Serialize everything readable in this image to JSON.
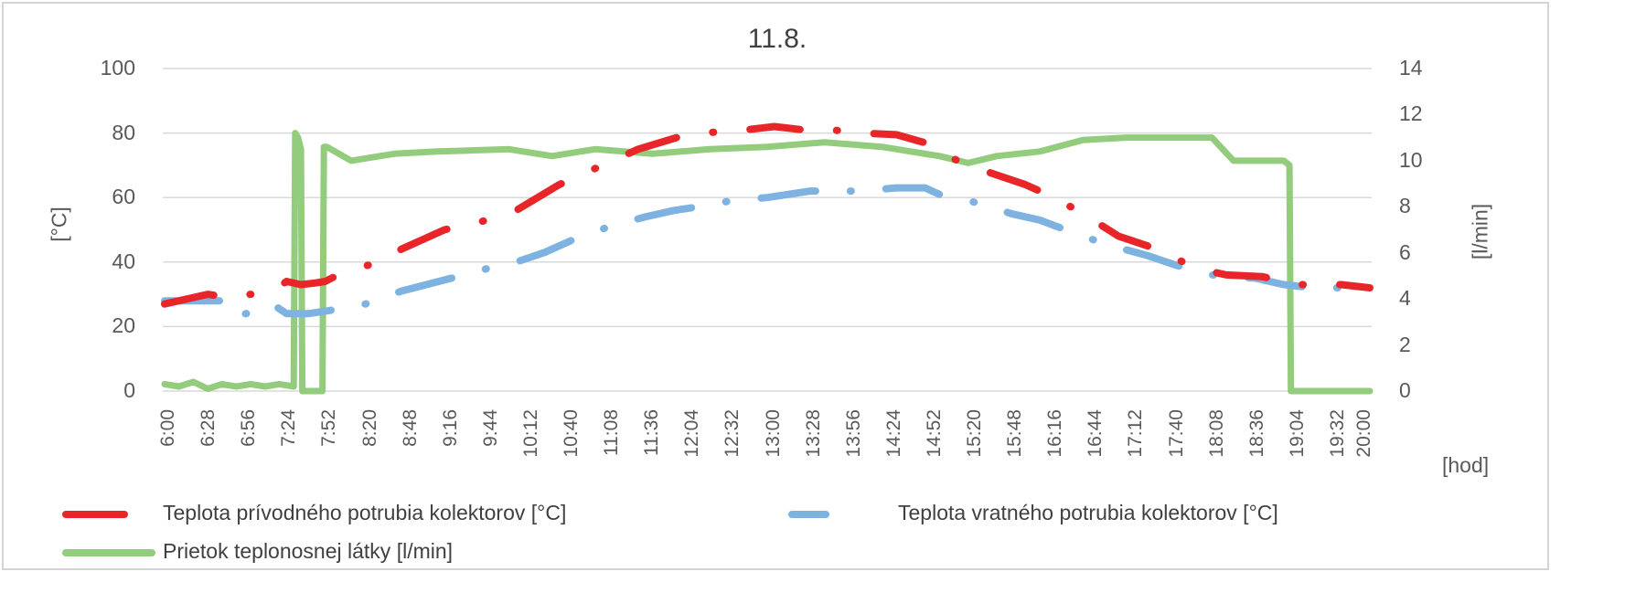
{
  "chart_data": {
    "type": "line",
    "title": "11.8.",
    "xlabel": "[hod]",
    "ylabel_left": "[°C]",
    "ylabel_right": "[l/min]",
    "ylim_left": [
      0,
      100
    ],
    "ylim_right": [
      0,
      14
    ],
    "yticks_left": [
      "100",
      "80",
      "60",
      "40",
      "20",
      "0"
    ],
    "yticks_right": [
      "14",
      "12",
      "10",
      "8",
      "6",
      "4",
      "2",
      "0"
    ],
    "xticks": [
      "6:00",
      "6:28",
      "6:56",
      "7:24",
      "7:52",
      "8:20",
      "8:48",
      "9:16",
      "9:44",
      "10:12",
      "10:40",
      "11:08",
      "11:36",
      "12:04",
      "12:32",
      "13:00",
      "13:28",
      "13:56",
      "14:24",
      "14:52",
      "15:20",
      "15:48",
      "16:16",
      "16:44",
      "17:12",
      "17:40",
      "18:08",
      "18:36",
      "19:04",
      "19:32",
      "20:00"
    ],
    "grid": true,
    "legend_position": "bottom",
    "series": [
      {
        "name": "Teplota prívodného potrubia  kolektorov [°C]",
        "axis": "left",
        "color": "#e8262a",
        "x": [
          "6:00",
          "6:30",
          "6:45",
          "7:00",
          "7:15",
          "7:25",
          "7:35",
          "7:45",
          "7:52",
          "8:05",
          "8:30",
          "8:45",
          "9:00",
          "9:15",
          "9:45",
          "10:05",
          "10:20",
          "10:35",
          "10:50",
          "11:30",
          "12:00",
          "12:15",
          "12:45",
          "13:05",
          "13:25",
          "13:45",
          "14:05",
          "14:30",
          "14:50",
          "15:05",
          "15:20",
          "15:40",
          "16:00",
          "16:20",
          "16:40",
          "17:05",
          "17:25",
          "17:40",
          "18:00",
          "18:20",
          "18:45",
          "19:10",
          "19:40",
          "20:00"
        ],
        "values": [
          27,
          30,
          29,
          30,
          31,
          34,
          33,
          33.5,
          34,
          37,
          40,
          44,
          47,
          50,
          53,
          56,
          60,
          64,
          67,
          75,
          79,
          80,
          81,
          82,
          81,
          81,
          80,
          79.5,
          77,
          73,
          70,
          67,
          64,
          60,
          55,
          48,
          45,
          42,
          38,
          36,
          35.5,
          33,
          33,
          32
        ]
      },
      {
        "name": "Teplota vratného potrubia  kolektorov [°C]",
        "axis": "left",
        "color": "#7eb2e0",
        "x": [
          "6:00",
          "6:30",
          "6:40",
          "6:48",
          "7:05",
          "7:15",
          "7:25",
          "7:40",
          "7:55",
          "8:20",
          "8:45",
          "9:20",
          "9:45",
          "10:05",
          "10:25",
          "10:45",
          "11:10",
          "11:35",
          "11:55",
          "12:10",
          "12:35",
          "13:00",
          "13:30",
          "13:45",
          "14:05",
          "14:30",
          "14:50",
          "15:00",
          "15:30",
          "15:50",
          "16:10",
          "16:40",
          "17:00",
          "17:25",
          "17:45",
          "18:10",
          "18:40",
          "19:00",
          "19:20",
          "19:45"
        ],
        "values": [
          28,
          28,
          28,
          23,
          25,
          27,
          24,
          24,
          25,
          27,
          31,
          35,
          38,
          40,
          43,
          47,
          51,
          54,
          56,
          57,
          59,
          60,
          62,
          62,
          62,
          63,
          63,
          61,
          58,
          55,
          53,
          48,
          45,
          42,
          39,
          36,
          35,
          33,
          32,
          32
        ]
      },
      {
        "name": "Prietok  teplonosnej látky [l/min]",
        "axis": "right",
        "color": "#92cc7c",
        "x": [
          "6:00",
          "6:10",
          "6:20",
          "6:30",
          "6:40",
          "6:50",
          "7:00",
          "7:10",
          "7:20",
          "7:30",
          "7:31",
          "7:33",
          "7:35",
          "7:36",
          "7:50",
          "7:51",
          "7:53",
          "8:10",
          "8:40",
          "9:10",
          "10:00",
          "10:30",
          "11:00",
          "11:40",
          "12:20",
          "13:00",
          "13:40",
          "14:20",
          "15:00",
          "15:20",
          "15:40",
          "16:10",
          "16:40",
          "17:10",
          "17:40",
          "18:10",
          "18:25",
          "18:45",
          "19:00",
          "19:04",
          "19:05",
          "20:00"
        ],
        "values": [
          0.3,
          0.2,
          0.4,
          0.1,
          0.3,
          0.2,
          0.3,
          0.2,
          0.3,
          0.2,
          11.2,
          11.0,
          10.5,
          0,
          0,
          10.6,
          10.6,
          10.0,
          10.3,
          10.4,
          10.5,
          10.2,
          10.5,
          10.3,
          10.5,
          10.6,
          10.8,
          10.6,
          10.2,
          9.9,
          10.2,
          10.4,
          10.9,
          11.0,
          11.0,
          11.0,
          10.0,
          10.0,
          10.0,
          9.8,
          0,
          0
        ]
      }
    ]
  },
  "legend": {
    "supply": "Teplota prívodného potrubia  kolektorov [°C]",
    "return": "Teplota vratného potrubia  kolektorov [°C]",
    "flow": "Prietok  teplonosnej látky [l/min]"
  }
}
